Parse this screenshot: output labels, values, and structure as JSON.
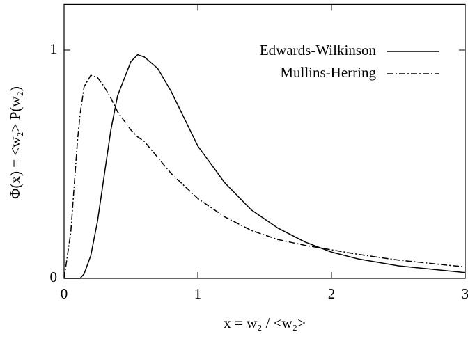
{
  "chart_data": {
    "type": "line",
    "xlabel": "x = w₂ / <w₂>",
    "ylabel": "Φ(x) = <w₂> P(w₂)",
    "x": [
      0,
      0.05,
      0.1,
      0.12,
      0.15,
      0.2,
      0.25,
      0.3,
      0.35,
      0.4,
      0.5,
      0.55,
      0.6,
      0.7,
      0.8,
      1.0,
      1.2,
      1.4,
      1.6,
      1.8,
      2.0,
      2.2,
      2.5,
      3.0
    ],
    "series": [
      {
        "name": "Edwards-Wilkinson",
        "color": "#000000",
        "style": "solid",
        "values": [
          0,
          0,
          0,
          0,
          0.02,
          0.1,
          0.25,
          0.45,
          0.65,
          0.8,
          0.95,
          0.98,
          0.97,
          0.92,
          0.82,
          0.58,
          0.42,
          0.3,
          0.22,
          0.16,
          0.115,
          0.085,
          0.055,
          0.025
        ]
      },
      {
        "name": "Mullins-Herring",
        "color": "#000000",
        "style": "dash-dot",
        "values": [
          0,
          0.2,
          0.6,
          0.72,
          0.84,
          0.89,
          0.88,
          0.84,
          0.79,
          0.73,
          0.65,
          0.62,
          0.6,
          0.53,
          0.46,
          0.35,
          0.27,
          0.21,
          0.17,
          0.145,
          0.125,
          0.105,
          0.08,
          0.05
        ]
      }
    ],
    "xlim": [
      0,
      3
    ],
    "xticks": [
      0,
      1,
      2,
      3
    ],
    "ylim": [
      0,
      1.2
    ],
    "yticks": [
      0,
      1
    ],
    "legend": "top-right",
    "grid": false
  }
}
